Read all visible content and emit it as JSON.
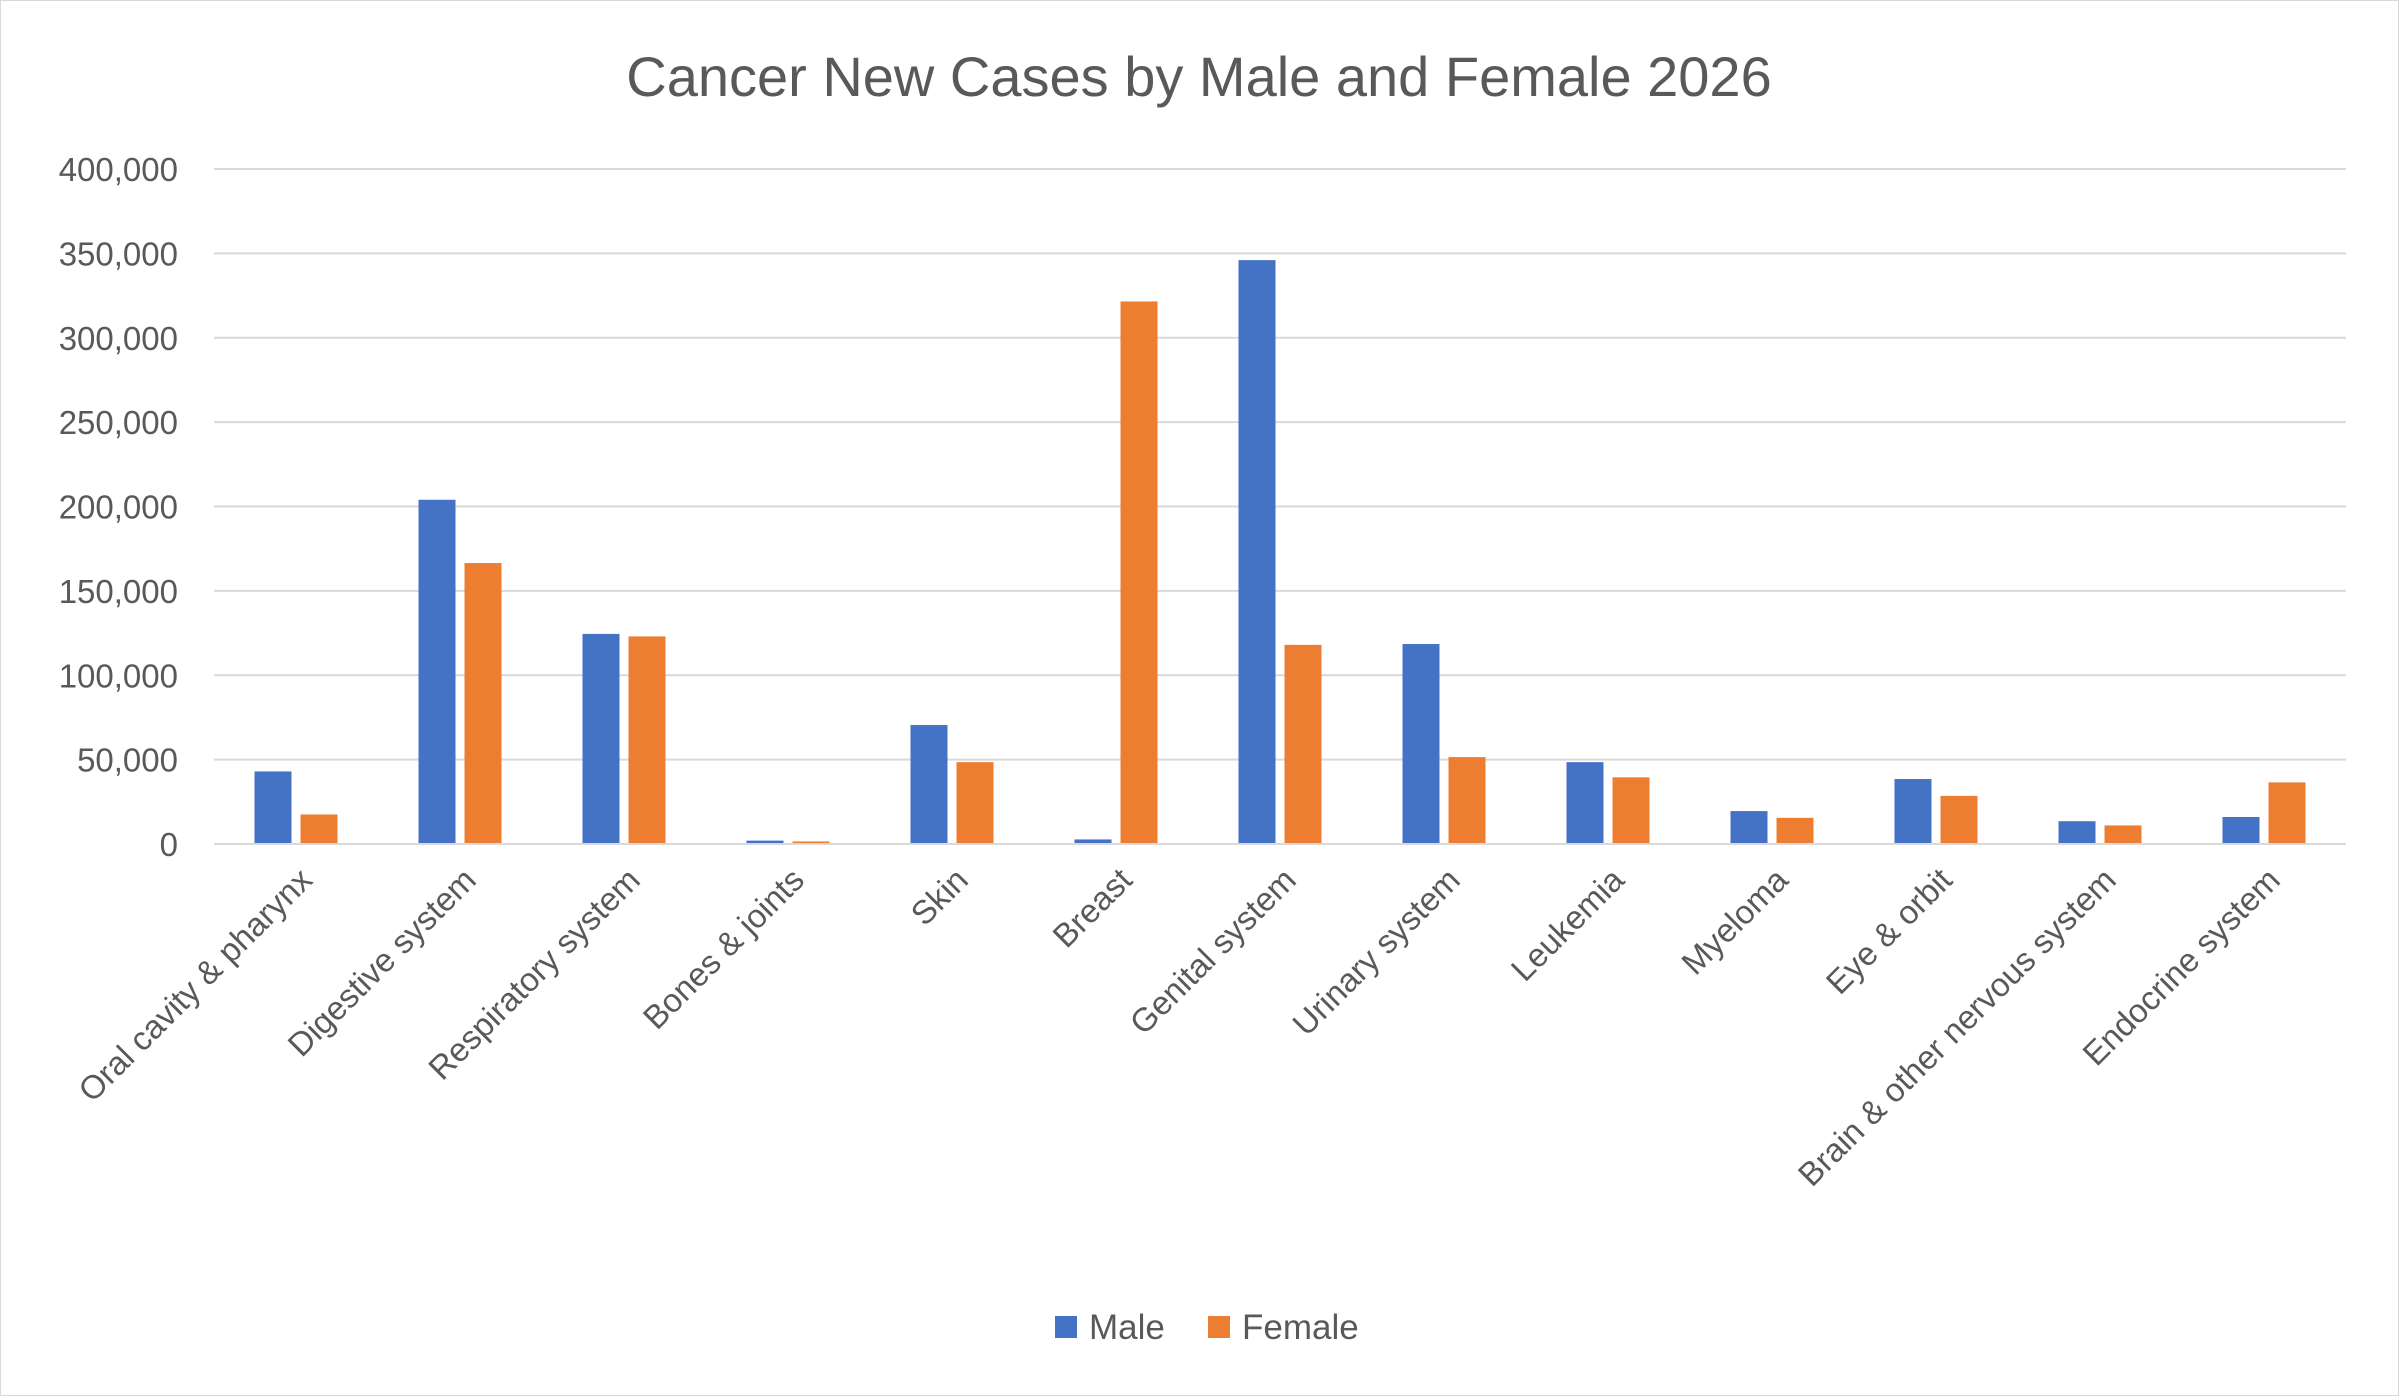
{
  "chart_data": {
    "type": "bar",
    "title": "Cancer New Cases by Male and Female 2026",
    "xlabel": "",
    "ylabel": "",
    "ylim": [
      0,
      400000
    ],
    "yticks": [
      "0",
      "50,000",
      "100,000",
      "150,000",
      "200,000",
      "250,000",
      "300,000",
      "350,000",
      "400,000"
    ],
    "grid": true,
    "legend_position": "bottom",
    "categories": [
      "Oral cavity & pharynx",
      "Digestive system",
      "Respiratory system",
      "Bones & joints",
      "Skin",
      "Breast",
      "Genital system",
      "Urinary system",
      "Leukemia",
      "Myeloma",
      "Eye & orbit",
      "Brain & other nervous system",
      "Endocrine system"
    ],
    "series": [
      {
        "name": "Male",
        "color": "#4472C4",
        "values": [
          43000,
          204000,
          124500,
          2000,
          70500,
          2700,
          346000,
          118500,
          48500,
          19500,
          38500,
          13500,
          16000
        ]
      },
      {
        "name": "Female",
        "color": "#ED7D31",
        "values": [
          17500,
          166500,
          123000,
          1500,
          48500,
          321500,
          118000,
          51500,
          39500,
          15500,
          28500,
          11000,
          36500
        ]
      }
    ]
  }
}
